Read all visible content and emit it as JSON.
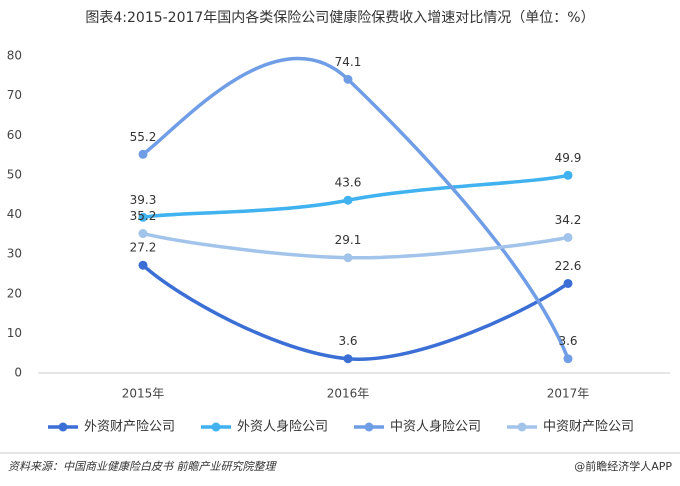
{
  "chart_data": {
    "type": "line",
    "title": "图表4:2015-2017年国内各类保险公司健康险保费收入增速对比情况（单位：%）",
    "categories": [
      "2015年",
      "2016年",
      "2017年"
    ],
    "series": [
      {
        "name": "外资财产险公司",
        "color": "#3b6fd6",
        "values": [
          27.2,
          3.6,
          22.6
        ]
      },
      {
        "name": "外资人身险公司",
        "color": "#3fb2ef",
        "values": [
          39.3,
          43.6,
          49.9
        ]
      },
      {
        "name": "中资人身险公司",
        "color": "#6f9de6",
        "values": [
          55.2,
          74.1,
          3.6
        ]
      },
      {
        "name": "中资财产险公司",
        "color": "#a3c4ea",
        "values": [
          35.2,
          29.1,
          34.2
        ]
      }
    ],
    "ylim": [
      0,
      80
    ],
    "yticks": [
      0,
      10,
      20,
      30,
      40,
      50,
      60,
      70,
      80
    ],
    "legend": "bottom",
    "source": "资料来源：中国商业健康险白皮书 前瞻产业研究院整理",
    "credit": "@前瞻经济学人APP"
  }
}
